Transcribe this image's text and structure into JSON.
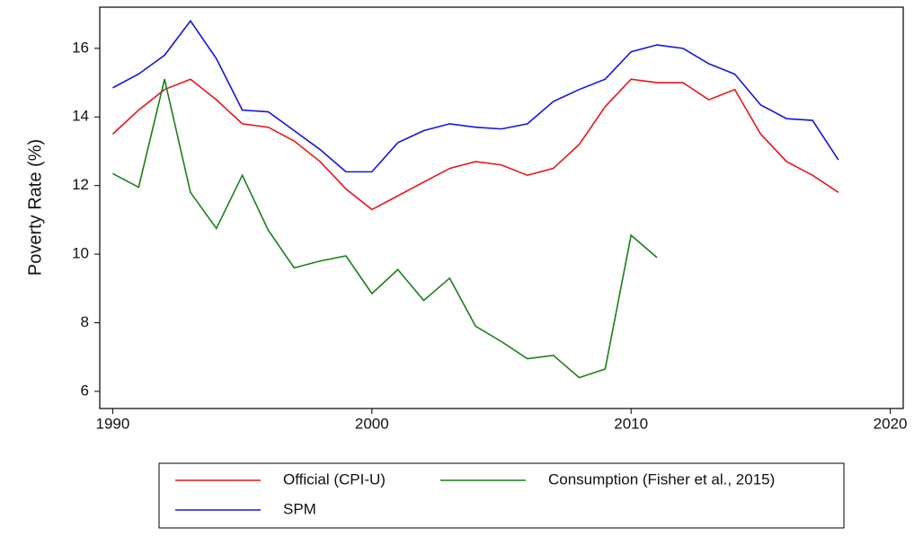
{
  "chart_data": {
    "type": "line",
    "y_label": "Poverty Rate (%)",
    "x": [
      1990,
      1991,
      1992,
      1993,
      1994,
      1995,
      1996,
      1997,
      1998,
      1999,
      2000,
      2001,
      2002,
      2003,
      2004,
      2005,
      2006,
      2007,
      2008,
      2009,
      2010,
      2011,
      2012,
      2013,
      2014,
      2015,
      2016,
      2017,
      2018
    ],
    "series": [
      {
        "name": "Official (CPI-U)",
        "color": "#e8141b",
        "values": [
          13.5,
          14.2,
          14.8,
          15.1,
          14.5,
          13.8,
          13.7,
          13.3,
          12.7,
          11.9,
          11.3,
          11.7,
          12.1,
          12.5,
          12.7,
          12.6,
          12.3,
          12.5,
          13.2,
          14.3,
          15.1,
          15.0,
          15.0,
          14.5,
          14.8,
          13.5,
          12.7,
          12.3,
          11.8
        ]
      },
      {
        "name": "Consumption (Fisher et al., 2015)",
        "color": "#1a7f1a",
        "values": [
          12.35,
          11.95,
          15.1,
          11.8,
          10.75,
          12.3,
          10.7,
          9.6,
          9.8,
          9.95,
          8.85,
          9.55,
          8.65,
          9.3,
          7.9,
          7.45,
          6.95,
          7.05,
          6.4,
          6.65,
          10.55,
          9.9,
          null,
          null,
          null,
          null,
          null,
          null,
          null
        ]
      },
      {
        "name": "SPM",
        "color": "#1414e0",
        "values": [
          14.85,
          15.25,
          15.8,
          16.8,
          15.7,
          14.2,
          14.15,
          13.6,
          13.05,
          12.4,
          12.4,
          13.25,
          13.6,
          13.8,
          13.7,
          13.65,
          13.8,
          14.45,
          14.8,
          15.1,
          15.9,
          16.1,
          16.0,
          15.55,
          15.25,
          14.35,
          13.95,
          13.9,
          12.75
        ]
      }
    ],
    "xlim": [
      1989.5,
      2020.5
    ],
    "xticks": [
      1990,
      2000,
      2010,
      2020
    ],
    "ylim": [
      5.5,
      17.2
    ],
    "yticks": [
      6,
      8,
      10,
      12,
      14,
      16
    ]
  }
}
